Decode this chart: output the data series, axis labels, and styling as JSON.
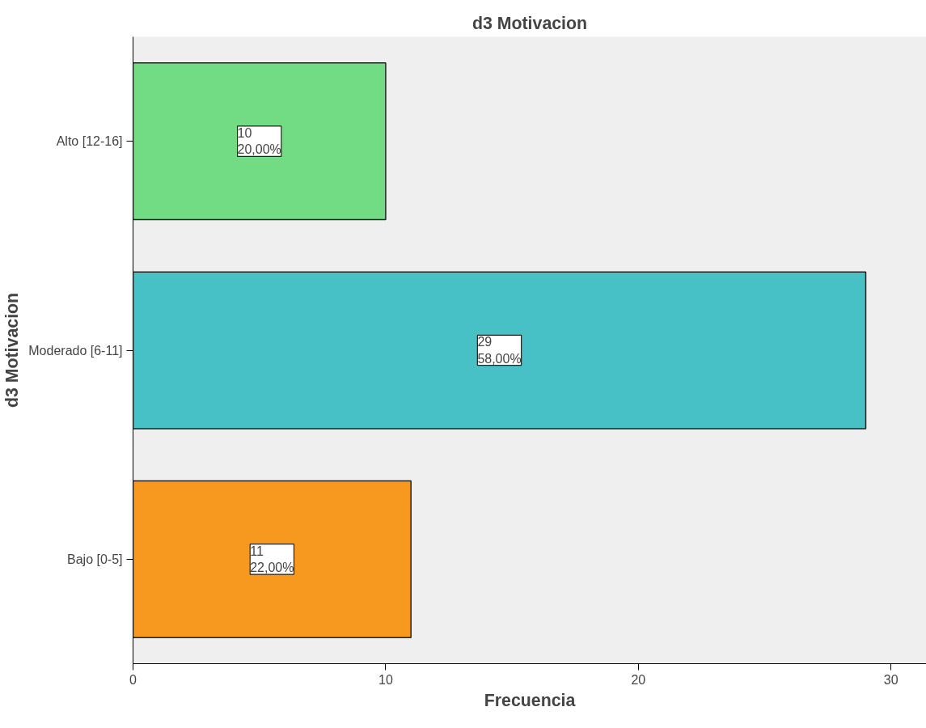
{
  "chart_data": {
    "type": "bar",
    "orientation": "horizontal",
    "title": "d3 Motivacion",
    "xlabel": "Frecuencia",
    "ylabel": "d3 Motivacion",
    "categories": [
      "Alto [12-16]",
      "Moderado [6-11]",
      "Bajo [0-5]"
    ],
    "values": [
      10,
      29,
      11
    ],
    "colors": [
      "#72dc84",
      "#48c1c6",
      "#f7991f"
    ],
    "value_labels": [
      "10\n20,00%",
      "29\n58,00%",
      "11\n22,00%"
    ],
    "xlim": [
      0,
      31.4
    ],
    "xticks": [
      0,
      10,
      20,
      30
    ],
    "grid": false
  }
}
